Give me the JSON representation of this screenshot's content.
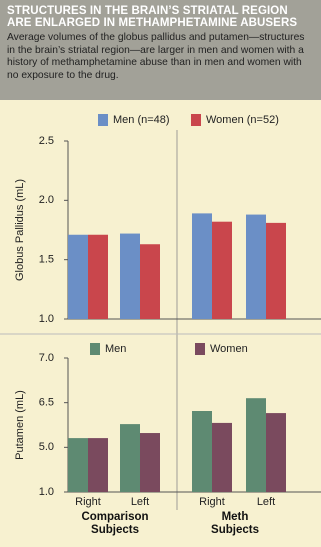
{
  "header": {
    "title": "STRUCTURES IN THE BRAIN’S STRIATAL REGION ARE ENLARGED IN METHAMPHETAMINE ABUSERS",
    "description": "Average volumes of the globus pallidus and putamen—structures in the brain’s striatal region—are larger in men and women with a history of methamphetamine abuse than in men and women with no exposure to the drug."
  },
  "chart_data": [
    {
      "type": "bar",
      "ylabel": "Globus Pallidus (mL)",
      "categories": [
        "Right",
        "Left",
        "Right",
        "Left"
      ],
      "series": [
        {
          "name": "Men (n=48)",
          "color": "#6b8fc6",
          "values": [
            1.71,
            1.72,
            1.89,
            1.88
          ]
        },
        {
          "name": "Women (n=52)",
          "color": "#c9464c",
          "values": [
            1.71,
            1.63,
            1.82,
            1.81
          ]
        }
      ],
      "ylim": [
        1.0,
        2.5
      ],
      "yticks": [
        {
          "value": 1.0,
          "label": "1.0"
        },
        1.5,
        {
          "value": 2.0,
          "label": "2.0"
        },
        2.5
      ]
    },
    {
      "type": "bar",
      "ylabel": "Putamen (mL)",
      "categories": [
        "Right",
        "Left",
        "Right",
        "Left"
      ],
      "groups": [
        "Comparison Subjects",
        "Meth Subjects"
      ],
      "series": [
        {
          "name": "Men",
          "color": "#5e8a72",
          "values": [
            5.31,
            5.78,
            6.22,
            6.55
          ]
        },
        {
          "name": "Women",
          "color": "#7a4a5e",
          "values": [
            5.31,
            5.48,
            5.82,
            6.15
          ]
        }
      ],
      "ylim": [
        1.0,
        7.0
      ],
      "yticks": [
        {
          "value": 1.0,
          "label": "1.0"
        },
        {
          "value": 5.0,
          "label": "5.0"
        },
        6.5,
        {
          "value": 7.0,
          "label": "7.0"
        }
      ]
    }
  ]
}
